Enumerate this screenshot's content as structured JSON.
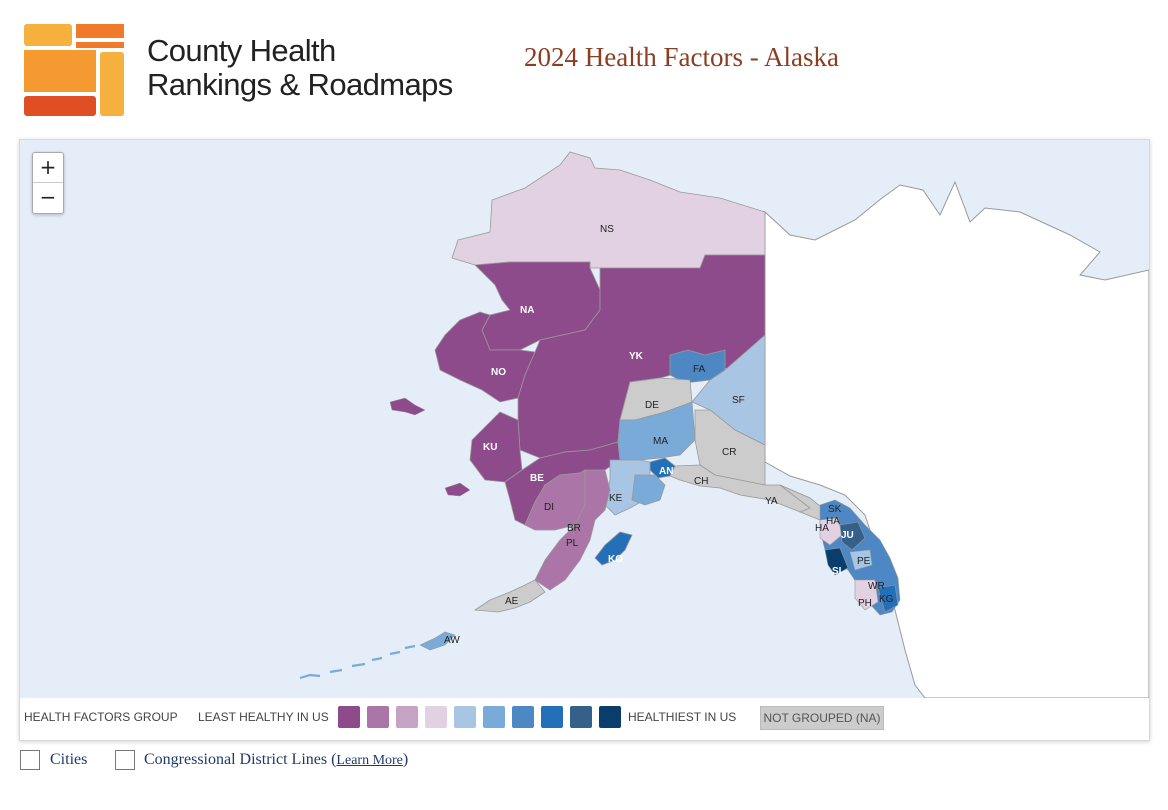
{
  "brand": {
    "line1": "County Health",
    "line2": "Rankings & Roadmaps"
  },
  "page_title": "2024 Health Factors - Alaska",
  "zoom": {
    "in_label": "+",
    "out_label": "−"
  },
  "legend": {
    "title": "HEALTH FACTORS GROUP",
    "least": "LEAST HEALTHY IN US",
    "healthiest": "HEALTHIEST IN US",
    "not_grouped": "NOT GROUPED (NA)",
    "colors": [
      "#8e4b8b",
      "#ab75a8",
      "#c6a3c5",
      "#e2d1e2",
      "#a8c5e3",
      "#7aaad7",
      "#4d88c4",
      "#2470b8",
      "#34608a",
      "#083d6c"
    ],
    "na_color": "#cccccc"
  },
  "counties": {
    "NS": "NS",
    "NA": "NA",
    "NO": "NO",
    "YK": "YK",
    "FA": "FA",
    "DE": "DE",
    "SF": "SF",
    "MA": "MA",
    "KU": "KU",
    "CR": "CR",
    "BE": "BE",
    "AN": "AN",
    "DI": "DI",
    "KE": "KE",
    "CH": "CH",
    "YA": "YA",
    "BR": "BR",
    "PL": "PL",
    "KO": "KO",
    "SK": "SK",
    "HA1": "HA",
    "HA2": "HA",
    "JU": "JU",
    "SI": "SI",
    "PE": "PE",
    "WR": "WR",
    "KG": "KG",
    "PH": "PH",
    "AE": "AE",
    "AW": "AW"
  },
  "options": {
    "cities": "Cities",
    "districts": "Congressional District Lines",
    "learn_more": "Learn More"
  }
}
